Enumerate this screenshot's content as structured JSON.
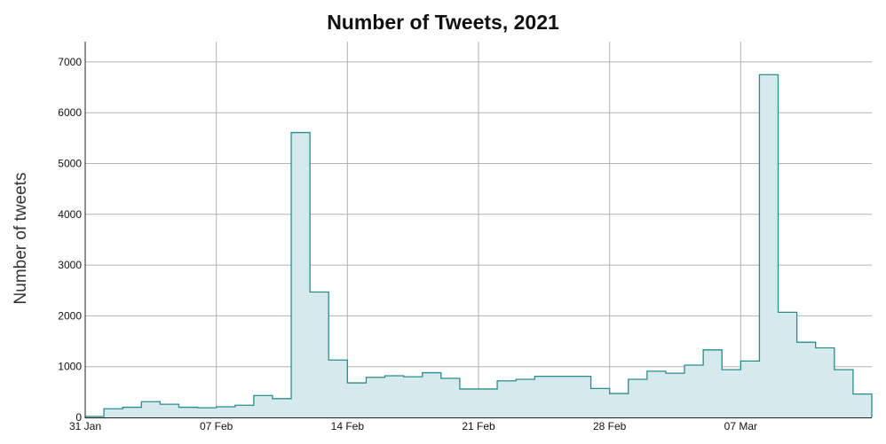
{
  "chart_data": {
    "type": "area",
    "step": true,
    "title": "Number of Tweets, 2021",
    "xlabel": "",
    "ylabel": "Number of tweets",
    "grid": true,
    "colors": {
      "line": "#2a8c8c",
      "fill": "#d6e9ec",
      "grid": "#b3b3b3"
    },
    "x_ticks": [
      "31 Jan",
      "07 Feb",
      "14 Feb",
      "21 Feb",
      "28 Feb",
      "07 Mar"
    ],
    "x_tick_dates": [
      "2021-01-31",
      "2021-02-07",
      "2021-02-14",
      "2021-02-21",
      "2021-02-28",
      "2021-03-07"
    ],
    "xlim": [
      "2021-01-31",
      "2021-03-14"
    ],
    "ylim": [
      0,
      7400
    ],
    "y_ticks": [
      0,
      1000,
      2000,
      3000,
      4000,
      5000,
      6000,
      7000
    ],
    "x": [
      "2021-01-31",
      "2021-02-01",
      "2021-02-02",
      "2021-02-03",
      "2021-02-04",
      "2021-02-05",
      "2021-02-06",
      "2021-02-07",
      "2021-02-08",
      "2021-02-09",
      "2021-02-10",
      "2021-02-11",
      "2021-02-12",
      "2021-02-13",
      "2021-02-14",
      "2021-02-15",
      "2021-02-16",
      "2021-02-17",
      "2021-02-18",
      "2021-02-19",
      "2021-02-20",
      "2021-02-21",
      "2021-02-22",
      "2021-02-23",
      "2021-02-24",
      "2021-02-25",
      "2021-02-26",
      "2021-02-27",
      "2021-02-28",
      "2021-03-01",
      "2021-03-02",
      "2021-03-03",
      "2021-03-04",
      "2021-03-05",
      "2021-03-06",
      "2021-03-07",
      "2021-03-08",
      "2021-03-09",
      "2021-03-10",
      "2021-03-11",
      "2021-03-12",
      "2021-03-13"
    ],
    "values": [
      20,
      170,
      200,
      310,
      260,
      200,
      190,
      210,
      240,
      430,
      370,
      5610,
      2470,
      1130,
      680,
      790,
      820,
      800,
      880,
      770,
      560,
      560,
      720,
      750,
      810,
      810,
      810,
      570,
      470,
      750,
      910,
      870,
      1030,
      1330,
      940,
      1110,
      6750,
      2070,
      1480,
      1370,
      940,
      460
    ]
  }
}
